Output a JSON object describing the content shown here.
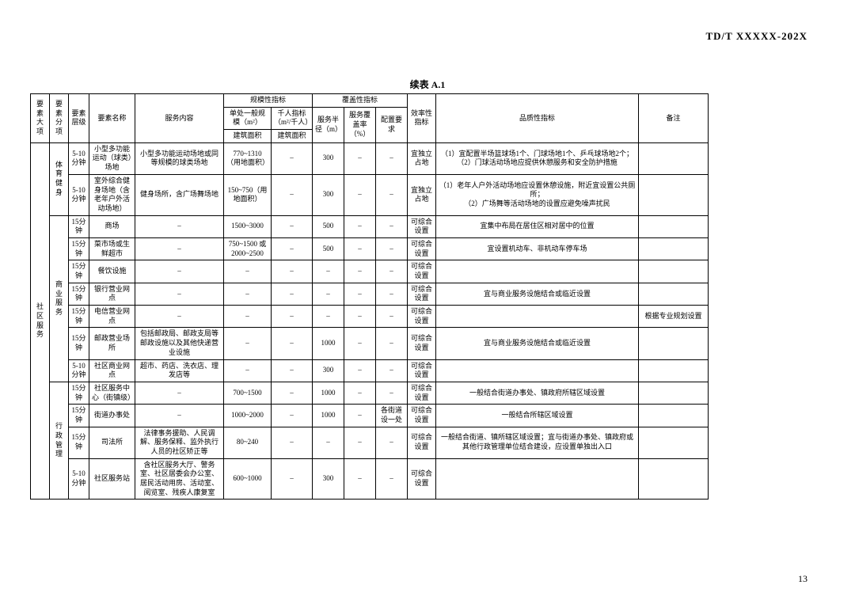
{
  "header_code": "TD/T  XXXXX-202X",
  "table_title": "续表 A.1",
  "page_number": "13",
  "headers": {
    "c1": "要素大项",
    "c2": "要素分项",
    "c3": "要素层级",
    "c4": "要素名称",
    "c5": "服务内容",
    "g1": "规模性指标",
    "g1a": "单处一般规模（m²）",
    "g1b": "千人指标（m²/千人）",
    "g1a2": "建筑面积",
    "g1b2": "建筑面积",
    "g2": "覆盖性指标",
    "g2a": "服务半径（m）",
    "g2b": "服务覆盖率（%）",
    "g2c": "配置要求",
    "c_eff": "效率性指标",
    "c_qual": "品质性指标",
    "c_note": "备注"
  },
  "col_widths": {
    "c1": 24,
    "c2": 24,
    "c3": 26,
    "c4": 58,
    "c5": 112,
    "g1a": 60,
    "g1b": 52,
    "g2a": 40,
    "g2b": 40,
    "g2c": 40,
    "c_eff": 36,
    "c_qual": 256,
    "c_note": 88
  },
  "rows": [
    {
      "big": "社区服务",
      "sub": "体育健身",
      "lvl": "5-10分钟",
      "name": "小型多功能运动（球类）场地",
      "content": "小型多功能运动场地或同等规模的球类场地",
      "scale": "770~1310（用地面积）",
      "qk": "–",
      "radius": "300",
      "cov": "–",
      "req": "–",
      "eff": "宜独立占地",
      "qual": "（1）宜配置半场篮球场1个、门球场地1个、乒乓球场地2个；\n（2）门球活动场地应提供休憩服务和安全防护措施",
      "note": ""
    },
    {
      "lvl": "5-10分钟",
      "name": "室外综合健身场地（含老年户外活动场地）",
      "content": "健身场所，含广场舞场地",
      "scale": "150~750（用地面积）",
      "qk": "–",
      "radius": "300",
      "cov": "–",
      "req": "–",
      "eff": "宜独立占地",
      "qual": "（1）老年人户外活动场地应设置休憩设施，附近宜设置公共厕所；\n（2）广场舞等活动场地的设置应避免噪声扰民",
      "note": ""
    },
    {
      "sub": "商业服务",
      "lvl": "15分钟",
      "name": "商场",
      "content": "–",
      "scale": "1500~3000",
      "qk": "–",
      "radius": "500",
      "cov": "–",
      "req": "–",
      "eff": "可综合设置",
      "qual": "宜集中布局在居住区相对居中的位置",
      "note": ""
    },
    {
      "lvl": "15分钟",
      "name": "菜市场或生鲜超市",
      "content": "–",
      "scale": "750~1500 或 2000~2500",
      "qk": "–",
      "radius": "500",
      "cov": "–",
      "req": "–",
      "eff": "可综合设置",
      "qual": "宜设置机动车、非机动车停车场",
      "note": ""
    },
    {
      "lvl": "15分钟",
      "name": "餐饮设施",
      "content": "–",
      "scale": "–",
      "qk": "–",
      "radius": "–",
      "cov": "–",
      "req": "–",
      "eff": "可综合设置",
      "qual": "",
      "note": ""
    },
    {
      "lvl": "15分钟",
      "name": "银行营业网点",
      "content": "–",
      "scale": "–",
      "qk": "–",
      "radius": "–",
      "cov": "–",
      "req": "–",
      "eff": "可综合设置",
      "qual": "宜与商业服务设施结合或临近设置",
      "note": ""
    },
    {
      "lvl": "15分钟",
      "name": "电信营业网点",
      "content": "–",
      "scale": "–",
      "qk": "–",
      "radius": "–",
      "cov": "–",
      "req": "–",
      "eff": "可综合设置",
      "qual": "",
      "note": "根据专业规划设置"
    },
    {
      "lvl": "15分钟",
      "name": "邮政营业场所",
      "content": "包括邮政局、邮政支局等邮政设施以及其他快递营业设施",
      "scale": "–",
      "qk": "–",
      "radius": "1000",
      "cov": "–",
      "req": "–",
      "eff": "可综合设置",
      "qual": "宜与商业服务设施结合或临近设置",
      "note": ""
    },
    {
      "lvl": "5-10分钟",
      "name": "社区商业网点",
      "content": "超市、药店、洗衣店、理发店等",
      "scale": "–",
      "qk": "–",
      "radius": "300",
      "cov": "–",
      "req": "–",
      "eff": "可综合设置",
      "qual": "",
      "note": ""
    },
    {
      "sub": "行政管理",
      "lvl": "15分钟",
      "name": "社区服务中心（街镇级）",
      "content": "–",
      "scale": "700~1500",
      "qk": "–",
      "radius": "1000",
      "cov": "–",
      "req": "–",
      "eff": "可综合设置",
      "qual": "一般结合街道办事处、镇政府所辖区域设置",
      "note": ""
    },
    {
      "lvl": "15分钟",
      "name": "街道办事处",
      "content": "–",
      "scale": "1000~2000",
      "qk": "–",
      "radius": "1000",
      "cov": "–",
      "req": "各街道设一处",
      "eff": "可综合设置",
      "qual": "一般结合所辖区域设置",
      "note": ""
    },
    {
      "lvl": "15分钟",
      "name": "司法所",
      "content": "法律事务援助、人民调解、服务保释、监外执行人员的社区矫正等",
      "scale": "80~240",
      "qk": "–",
      "radius": "–",
      "cov": "–",
      "req": "–",
      "eff": "可综合设置",
      "qual": "一般结合街道、镇所辖区域设置；宜与街道办事处、镇政府或其他行政管理单位结合建设，应设置单独出入口",
      "note": ""
    },
    {
      "lvl": "5-10分钟",
      "name": "社区服务站",
      "content": "含社区服务大厅、警务室、社区居委会办公室、居民活动用房、活动室、阅览室、残疾人康复室",
      "scale": "600~1000",
      "qk": "–",
      "radius": "300",
      "cov": "–",
      "req": "–",
      "eff": "可综合设置",
      "qual": "",
      "note": ""
    }
  ]
}
